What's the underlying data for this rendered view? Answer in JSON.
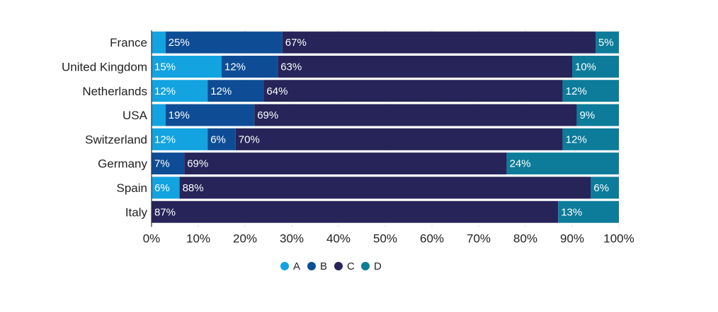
{
  "chart_data": {
    "type": "bar",
    "orientation": "horizontal",
    "stacked": true,
    "title": "",
    "xlabel": "",
    "ylabel": "",
    "xlim": [
      0,
      100
    ],
    "categories": [
      "France",
      "United Kingdom",
      "Netherlands",
      "USA",
      "Switzerland",
      "Germany",
      "Spain",
      "Italy"
    ],
    "series": [
      {
        "name": "A",
        "color": "#12a3e0",
        "values": [
          3,
          15,
          12,
          3,
          12,
          0,
          6,
          0
        ],
        "labels": [
          "",
          "15%",
          "12%",
          "",
          "12%",
          "",
          "6%",
          ""
        ]
      },
      {
        "name": "B",
        "color": "#0e4d95",
        "values": [
          25,
          12,
          12,
          19,
          6,
          7,
          0,
          0
        ],
        "labels": [
          "25%",
          "12%",
          "12%",
          "19%",
          "6%",
          "7%",
          "",
          ""
        ]
      },
      {
        "name": "C",
        "color": "#262459",
        "values": [
          67,
          63,
          64,
          69,
          70,
          69,
          88,
          87
        ],
        "labels": [
          "67%",
          "63%",
          "64%",
          "69%",
          "70%",
          "69%",
          "88%",
          "87%"
        ]
      },
      {
        "name": "D",
        "color": "#0c7c9a",
        "values": [
          5,
          10,
          12,
          9,
          12,
          24,
          6,
          13
        ],
        "labels": [
          "5%",
          "10%",
          "12%",
          "9%",
          "12%",
          "24%",
          "6%",
          "13%"
        ]
      }
    ],
    "x_ticks": [
      "0%",
      "10%",
      "20%",
      "30%",
      "40%",
      "50%",
      "60%",
      "70%",
      "80%",
      "90%",
      "100%"
    ],
    "x_tick_values": [
      0,
      10,
      20,
      30,
      40,
      50,
      60,
      70,
      80,
      90,
      100
    ],
    "grid": "vertical",
    "legend": {
      "position": "bottom-center",
      "items": [
        "A",
        "B",
        "C",
        "D"
      ]
    }
  }
}
